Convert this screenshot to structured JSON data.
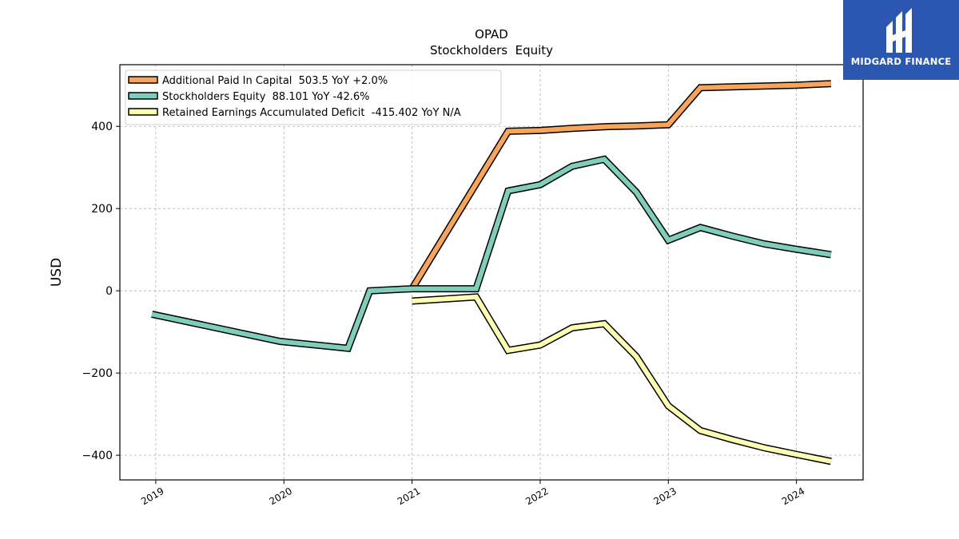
{
  "chart_data": {
    "type": "line",
    "title": "OPAD",
    "subtitle": "Stockholders  Equity",
    "ylabel": "USD",
    "xlabel": "",
    "ylim": [
      -460,
      550
    ],
    "xlim": [
      2018.72,
      2024.52
    ],
    "xticks": [
      2019,
      2020,
      2021,
      2022,
      2023,
      2024
    ],
    "xtick_labels": [
      "2019",
      "2020",
      "2021",
      "2022",
      "2023",
      "2024"
    ],
    "yticks": [
      -400,
      -200,
      0,
      200,
      400
    ],
    "ytick_labels": [
      "−400",
      "−200",
      "0",
      "200",
      "400"
    ],
    "grid": true,
    "legend_position": "top-left",
    "series": [
      {
        "name": "Additional Paid In Capital  503.5 YoY +2.0%",
        "color": "#f7a55c",
        "x": [
          2021.0,
          2021.75,
          2022.0,
          2022.25,
          2022.5,
          2022.75,
          2023.0,
          2023.25,
          2023.5,
          2023.75,
          2024.0,
          2024.27
        ],
        "y": [
          5,
          388,
          390,
          395,
          399,
          401,
          404,
          494,
          496,
          498,
          500,
          504
        ]
      },
      {
        "name": "Stockholders Equity  88.101 YoY -42.6%",
        "color": "#7fcdbb",
        "x": [
          2018.97,
          2019.97,
          2020.5,
          2020.67,
          2021.0,
          2021.5,
          2021.75,
          2022.0,
          2022.25,
          2022.5,
          2022.75,
          2023.0,
          2023.25,
          2023.5,
          2023.75,
          2024.0,
          2024.27
        ],
        "y": [
          -57,
          -123,
          -140,
          0,
          5,
          5,
          243,
          258,
          303,
          320,
          240,
          123,
          154,
          133,
          114,
          101,
          88
        ]
      },
      {
        "name": "Retained Earnings Accumulated Deficit  -415.402 YoY N/A",
        "color": "#ffffb3",
        "x": [
          2021.0,
          2021.5,
          2021.75,
          2022.0,
          2022.25,
          2022.5,
          2022.75,
          2023.0,
          2023.25,
          2023.5,
          2023.75,
          2024.0,
          2024.27
        ],
        "y": [
          -25,
          -15,
          -145,
          -132,
          -90,
          -80,
          -160,
          -280,
          -340,
          -362,
          -382,
          -398,
          -415
        ]
      }
    ]
  },
  "logo": {
    "text": "MIDGARD FINANCE"
  }
}
